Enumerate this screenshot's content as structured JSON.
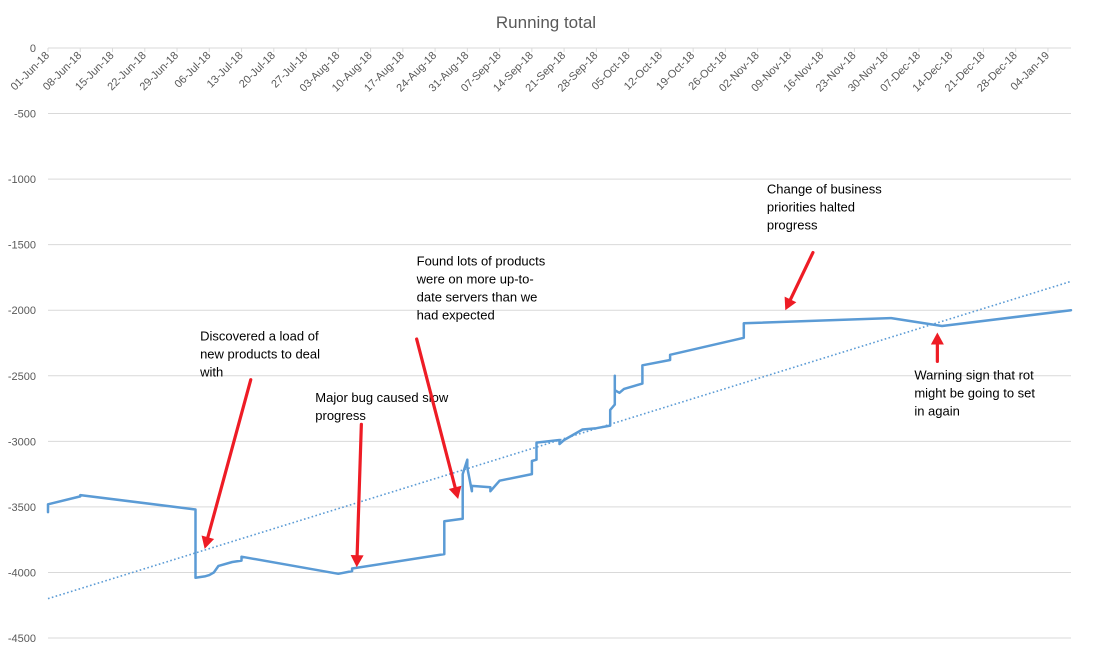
{
  "chart_data": {
    "type": "line",
    "title": "Running total",
    "xlabel": "",
    "ylabel": "",
    "x_range": [
      "2018-06-01",
      "2019-01-09"
    ],
    "ylim": [
      -4500,
      0
    ],
    "y_ticks": [
      0,
      -500,
      -1000,
      -1500,
      -2000,
      -2500,
      -3000,
      -3500,
      -4000,
      -4500
    ],
    "x_tick_labels": [
      "01-Jun-18",
      "08-Jun-18",
      "15-Jun-18",
      "22-Jun-18",
      "29-Jun-18",
      "06-Jul-18",
      "13-Jul-18",
      "20-Jul-18",
      "27-Jul-18",
      "03-Aug-18",
      "10-Aug-18",
      "17-Aug-18",
      "24-Aug-18",
      "31-Aug-18",
      "07-Sep-18",
      "14-Sep-18",
      "21-Sep-18",
      "28-Sep-18",
      "05-Oct-18",
      "12-Oct-18",
      "19-Oct-18",
      "26-Oct-18",
      "02-Nov-18",
      "09-Nov-18",
      "16-Nov-18",
      "23-Nov-18",
      "30-Nov-18",
      "07-Dec-18",
      "14-Dec-18",
      "21-Dec-18",
      "28-Dec-18",
      "04-Jan-19"
    ],
    "gridlines": true,
    "legend": "none",
    "series": [
      {
        "color": "#5B9BD5",
        "points": [
          [
            "2018-06-01",
            -3540
          ],
          [
            "2018-06-01",
            -3480
          ],
          [
            "2018-06-08",
            -3420
          ],
          [
            "2018-06-08",
            -3410
          ],
          [
            "2018-07-03",
            -3520
          ],
          [
            "2018-07-03",
            -4040
          ],
          [
            "2018-07-05",
            -4030
          ],
          [
            "2018-07-06",
            -4020
          ],
          [
            "2018-07-07",
            -4000
          ],
          [
            "2018-07-08",
            -3950
          ],
          [
            "2018-07-11",
            -3920
          ],
          [
            "2018-07-13",
            -3910
          ],
          [
            "2018-07-13",
            -3880
          ],
          [
            "2018-08-03",
            -4010
          ],
          [
            "2018-08-06",
            -3990
          ],
          [
            "2018-08-06",
            -3970
          ],
          [
            "2018-08-26",
            -3860
          ],
          [
            "2018-08-26",
            -3610
          ],
          [
            "2018-08-30",
            -3590
          ],
          [
            "2018-08-30",
            -3250
          ],
          [
            "2018-08-31",
            -3140
          ],
          [
            "2018-08-31",
            -3200
          ],
          [
            "2018-09-01",
            -3380
          ],
          [
            "2018-09-01",
            -3340
          ],
          [
            "2018-09-05",
            -3350
          ],
          [
            "2018-09-05",
            -3380
          ],
          [
            "2018-09-06",
            -3340
          ],
          [
            "2018-09-07",
            -3300
          ],
          [
            "2018-09-14",
            -3250
          ],
          [
            "2018-09-14",
            -3150
          ],
          [
            "2018-09-15",
            -3140
          ],
          [
            "2018-09-15",
            -3010
          ],
          [
            "2018-09-20",
            -2990
          ],
          [
            "2018-09-20",
            -3020
          ],
          [
            "2018-09-21",
            -2990
          ],
          [
            "2018-09-25",
            -2910
          ],
          [
            "2018-09-28",
            -2900
          ],
          [
            "2018-10-01",
            -2880
          ],
          [
            "2018-10-01",
            -2760
          ],
          [
            "2018-10-02",
            -2720
          ],
          [
            "2018-10-02",
            -2500
          ],
          [
            "2018-10-02",
            -2610
          ],
          [
            "2018-10-03",
            -2630
          ],
          [
            "2018-10-04",
            -2600
          ],
          [
            "2018-10-08",
            -2560
          ],
          [
            "2018-10-08",
            -2420
          ],
          [
            "2018-10-14",
            -2380
          ],
          [
            "2018-10-14",
            -2340
          ],
          [
            "2018-10-30",
            -2210
          ],
          [
            "2018-10-30",
            -2100
          ],
          [
            "2018-12-01",
            -2060
          ],
          [
            "2018-12-12",
            -2120
          ],
          [
            "2019-01-09",
            -2000
          ]
        ]
      }
    ],
    "trendline": {
      "style": "dotted",
      "color": "#5B9BD5",
      "start": [
        "2018-06-01",
        -4200
      ],
      "end": [
        "2019-01-09",
        -1780
      ]
    },
    "annotations": [
      {
        "lines": [
          "Discovered a load of",
          "new products to deal",
          "with"
        ],
        "text_at": [
          "2018-07-04",
          -2230
        ],
        "arrow_from": [
          "2018-07-15",
          -2530
        ],
        "arrow_to": [
          "2018-07-05",
          -3820
        ]
      },
      {
        "lines": [
          "Major bug caused slow",
          "progress"
        ],
        "text_at": [
          "2018-07-29",
          -2700
        ],
        "arrow_from": [
          "2018-08-08",
          -2870
        ],
        "arrow_to": [
          "2018-08-07",
          -3960
        ]
      },
      {
        "lines": [
          "Found lots of products",
          "were on more up-to-",
          "date servers than we",
          "had expected"
        ],
        "text_at": [
          "2018-08-20",
          -1660
        ],
        "arrow_from": [
          "2018-08-20",
          -2220
        ],
        "arrow_to": [
          "2018-08-29",
          -3440
        ]
      },
      {
        "lines": [
          "Change of business",
          "priorities halted",
          "progress"
        ],
        "text_at": [
          "2018-11-04",
          -1110
        ],
        "arrow_from": [
          "2018-11-14",
          -1560
        ],
        "arrow_to": [
          "2018-11-08",
          -2000
        ]
      },
      {
        "lines": [
          "Warning sign that rot",
          "might be going to set",
          "in again"
        ],
        "text_at": [
          "2018-12-06",
          -2530
        ],
        "arrow_from": [
          "2018-12-11",
          -2390
        ],
        "arrow_to": [
          "2018-12-11",
          -2170
        ]
      }
    ]
  }
}
